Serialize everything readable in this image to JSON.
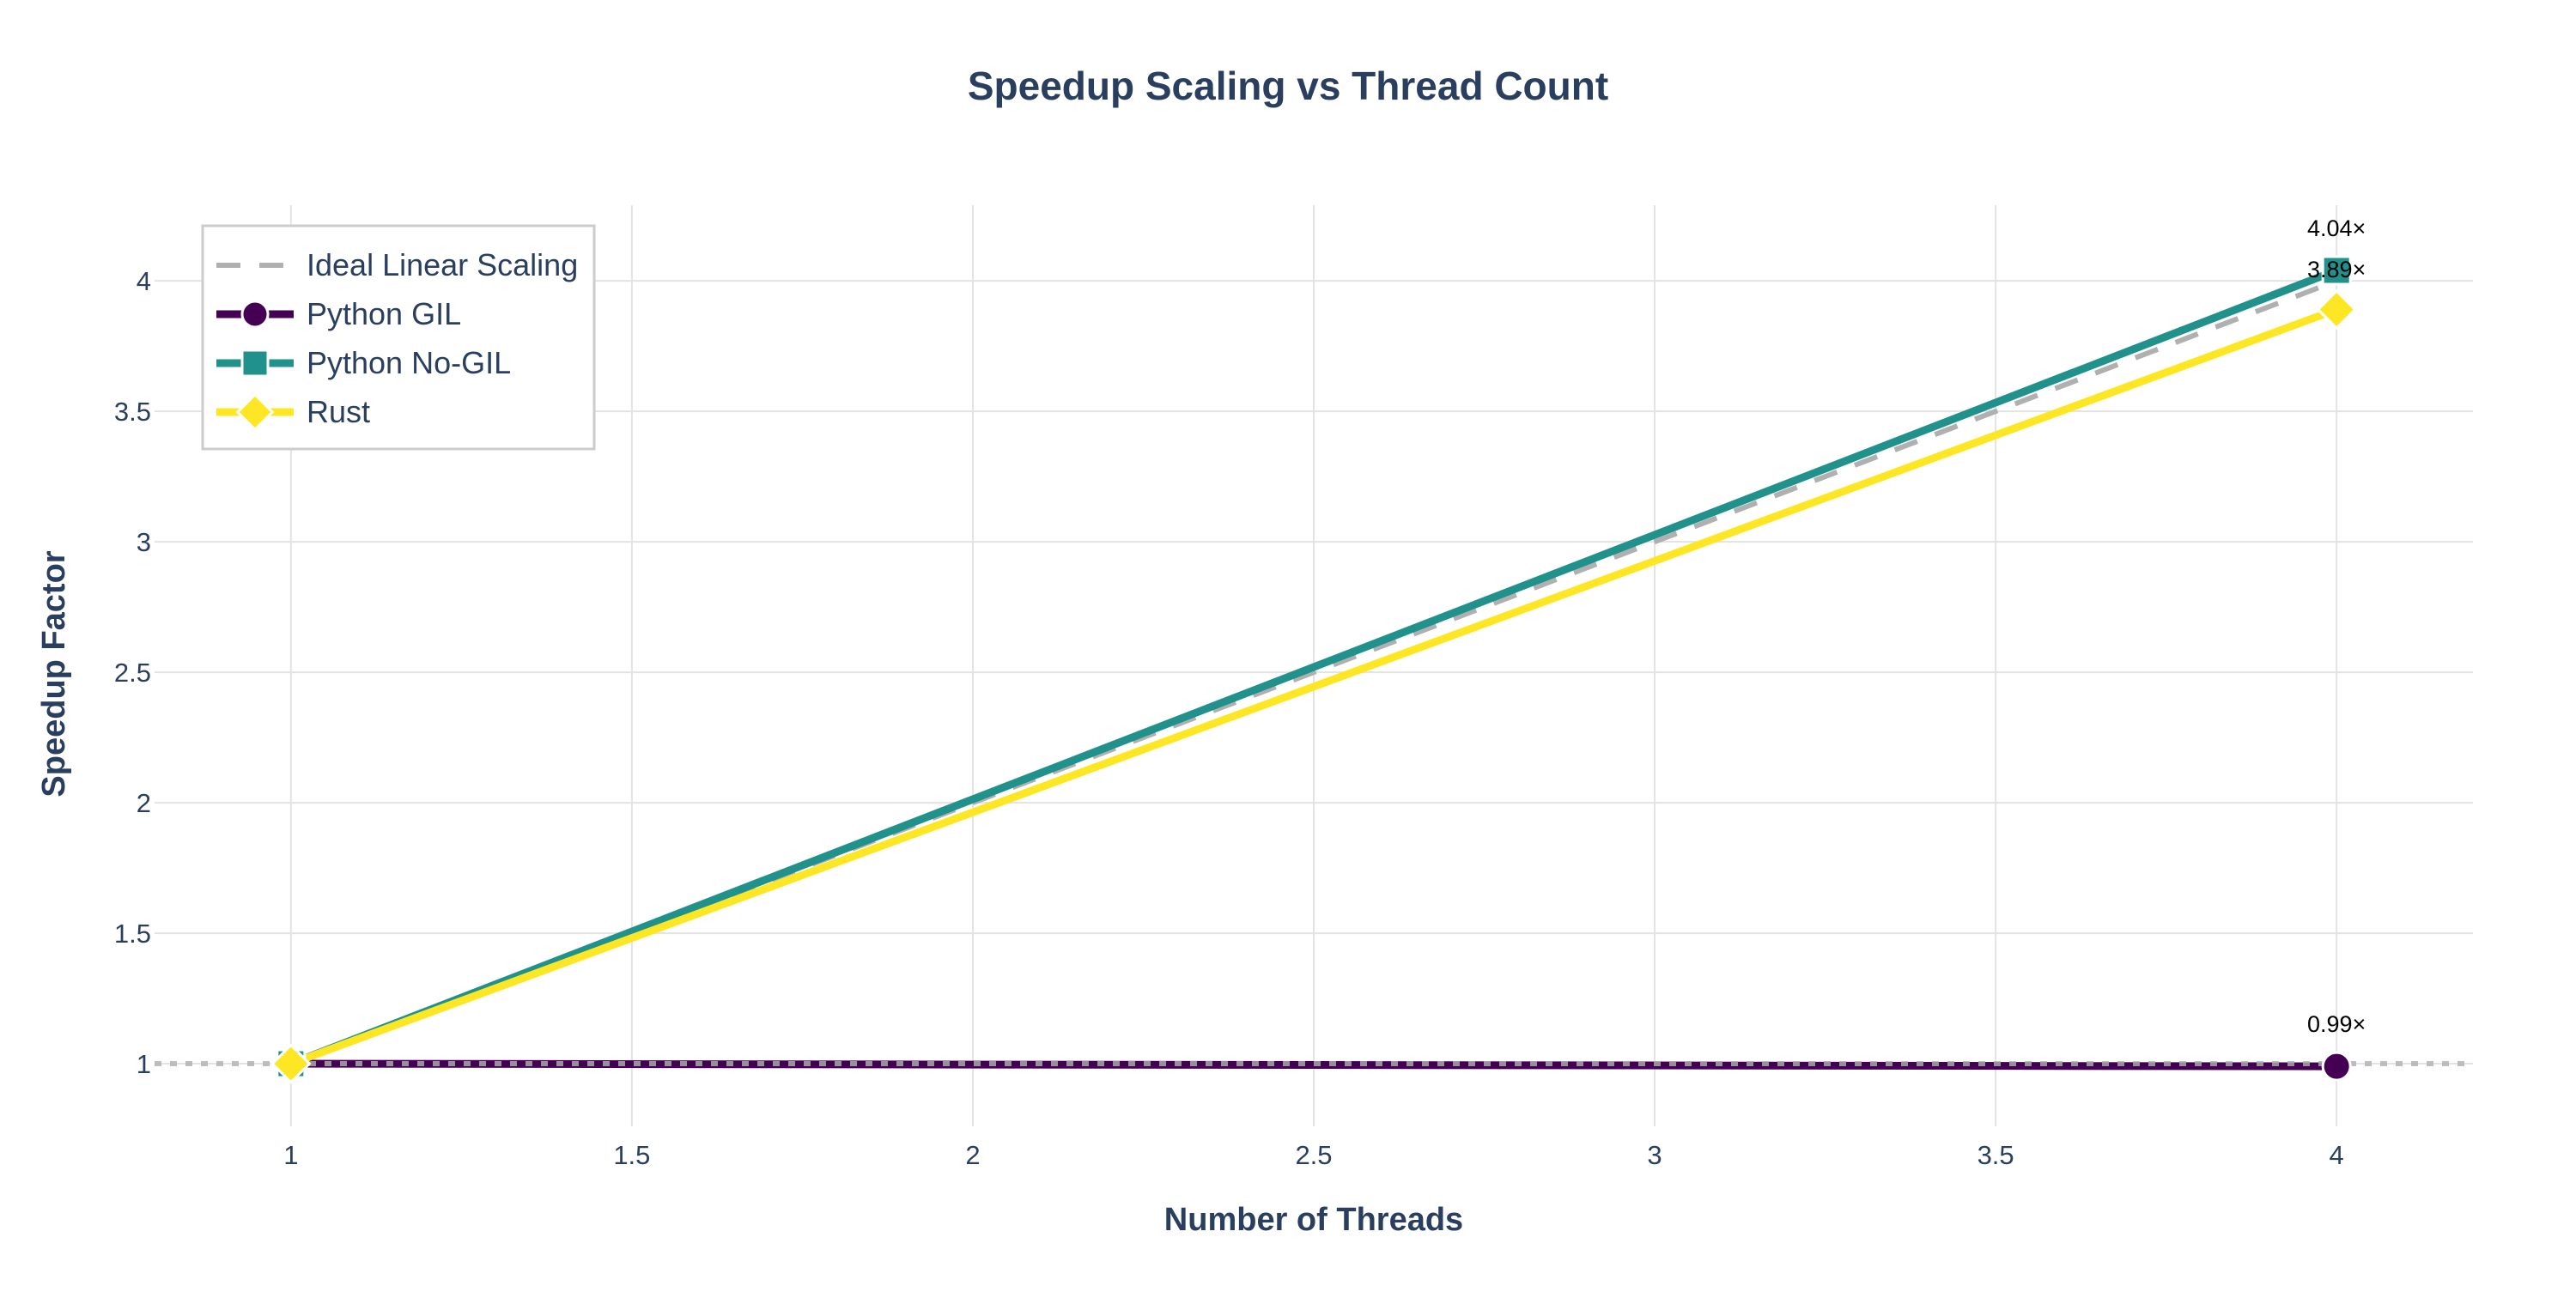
{
  "chart_data": {
    "type": "line",
    "title": "Speedup Scaling vs Thread Count",
    "xlabel": "Number of Threads",
    "ylabel": "Speedup Factor",
    "xlim": [
      0.8,
      4.2
    ],
    "ylim": [
      0.76,
      4.29
    ],
    "xticks": [
      1,
      1.5,
      2,
      2.5,
      3,
      3.5,
      4
    ],
    "xtick_labels": [
      "1",
      "1.5",
      "2",
      "2.5",
      "3",
      "3.5",
      "4"
    ],
    "yticks": [
      1,
      1.5,
      2,
      2.5,
      3,
      3.5,
      4
    ],
    "ytick_labels": [
      "1",
      "1.5",
      "2",
      "2.5",
      "3",
      "3.5",
      "4"
    ],
    "grid": true,
    "legend_position": "top-left",
    "baseline": {
      "y": 1,
      "color": "#b0b0b0",
      "style": "dotted"
    },
    "series": [
      {
        "name": "Ideal Linear Scaling",
        "x": [
          1,
          4
        ],
        "y": [
          1,
          4
        ],
        "color": "#b0b0b0",
        "dash": "dash",
        "marker": "none"
      },
      {
        "name": "Python GIL",
        "x": [
          1,
          4
        ],
        "y": [
          1,
          0.99
        ],
        "color": "#440154",
        "marker": "circle",
        "end_label": "0.99×"
      },
      {
        "name": "Python No-GIL",
        "x": [
          1,
          4
        ],
        "y": [
          1,
          4.04
        ],
        "color": "#21918c",
        "marker": "square",
        "end_label": "4.04×"
      },
      {
        "name": "Rust",
        "x": [
          1,
          4
        ],
        "y": [
          1,
          3.89
        ],
        "color": "#fde725",
        "marker": "diamond",
        "end_label": "3.89×"
      }
    ]
  }
}
